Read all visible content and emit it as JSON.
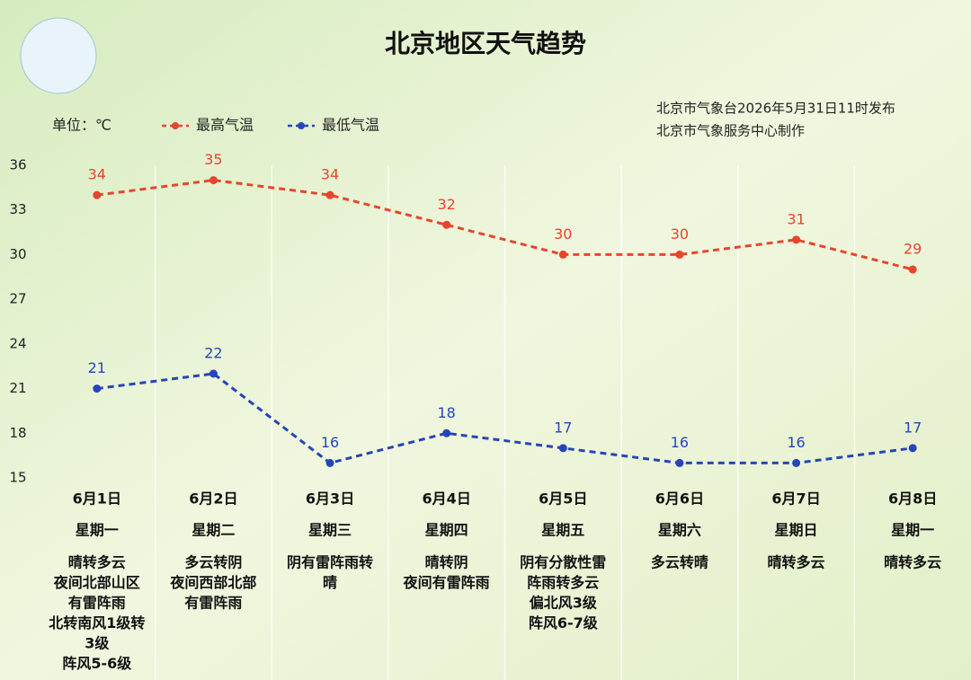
{
  "chart_data": {
    "type": "line",
    "title": "北京地区天气趋势",
    "unit": "单位：℃",
    "notes": [
      "北京市气象台2026年5月31日11时发布",
      "北京市气象服务中心制作"
    ],
    "categories": [
      "6月1日",
      "6月2日",
      "6月3日",
      "6月4日",
      "6月5日",
      "6月6日",
      "6月7日",
      "6月8日"
    ],
    "weekdays": [
      "星期一",
      "星期二",
      "星期三",
      "星期四",
      "星期五",
      "星期六",
      "星期日",
      "星期一"
    ],
    "descriptions": [
      [
        "晴转多云",
        "夜间北部山区",
        "有雷阵雨",
        "北转南风1级转",
        "3级",
        "阵风5-6级"
      ],
      [
        "多云转阴",
        "夜间西部北部",
        "有雷阵雨"
      ],
      [
        "阴有雷阵雨转",
        "晴"
      ],
      [
        "晴转阴",
        "夜间有雷阵雨"
      ],
      [
        "阴有分散性雷",
        "阵雨转多云",
        "偏北风3级",
        "阵风6-7级"
      ],
      [
        "多云转晴"
      ],
      [
        "晴转多云"
      ],
      [
        "晴转多云"
      ]
    ],
    "series": [
      {
        "name": "最高气温",
        "color": "#e8452c",
        "values": [
          34,
          35,
          34,
          32,
          30,
          30,
          31,
          29
        ]
      },
      {
        "name": "最低气温",
        "color": "#2645b8",
        "values": [
          21,
          22,
          16,
          18,
          17,
          16,
          16,
          17
        ]
      }
    ],
    "ylim": [
      15,
      36
    ],
    "yticks": [
      15,
      18,
      21,
      24,
      27,
      30,
      33,
      36
    ],
    "grid": false
  }
}
